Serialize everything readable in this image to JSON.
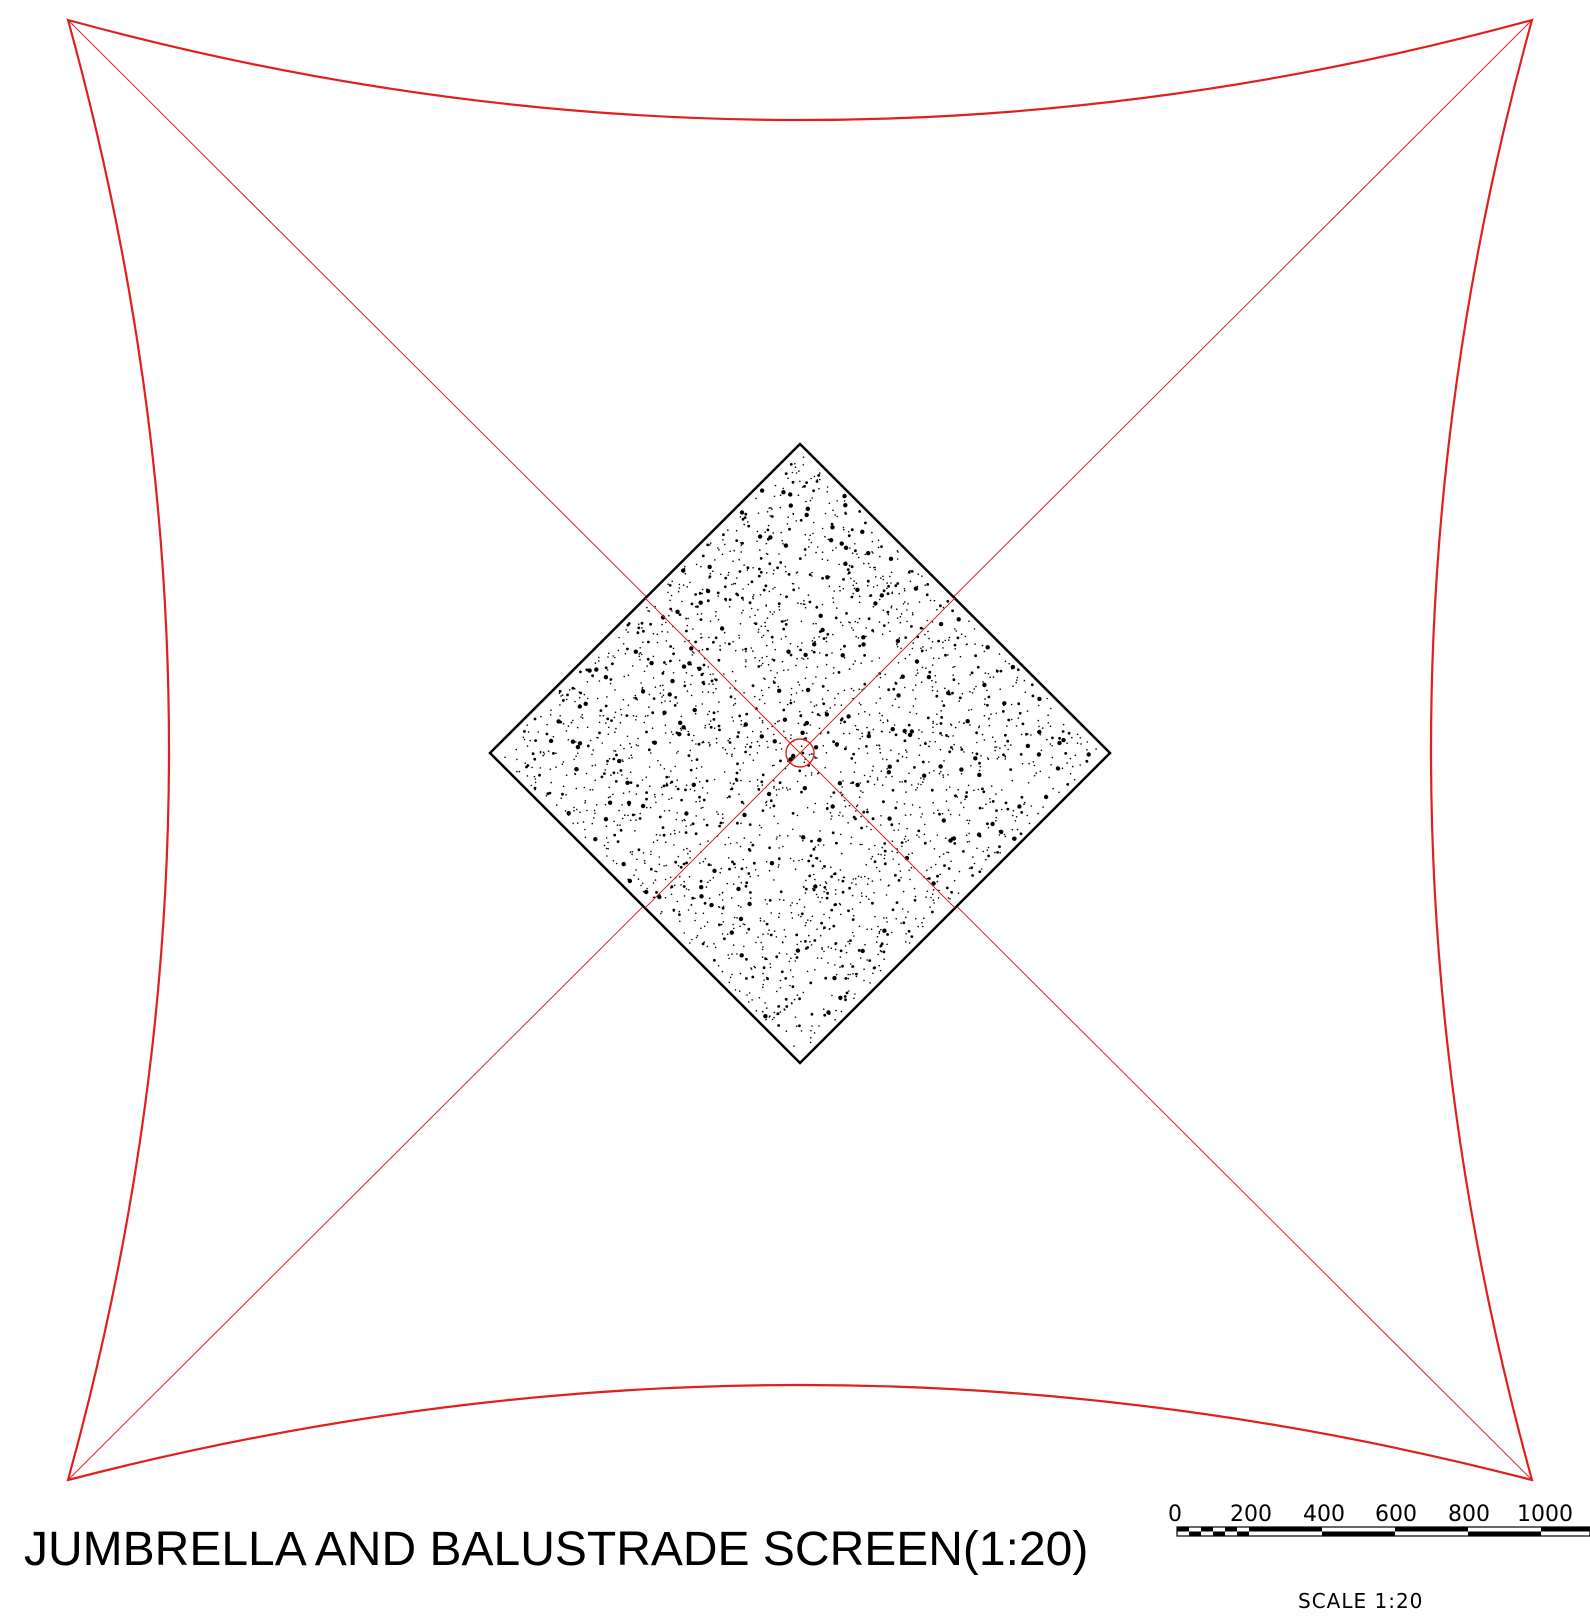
{
  "title": "JUMBRELLA AND BALUSTRADE SCREEN(1:20)",
  "scale_bar": {
    "ticks": [
      "0",
      "200",
      "400",
      "600",
      "800",
      "1000"
    ],
    "caption": "SCALE 1:20"
  },
  "colors": {
    "canopy_outline": "#e02020",
    "diagonal_lines": "#e02020",
    "base_outline": "#000000",
    "stipple": "#000000",
    "background": "#ffffff"
  },
  "elements": {
    "canopy": "umbrella canopy outline",
    "base": "stippled square base",
    "pole": "center pole"
  }
}
